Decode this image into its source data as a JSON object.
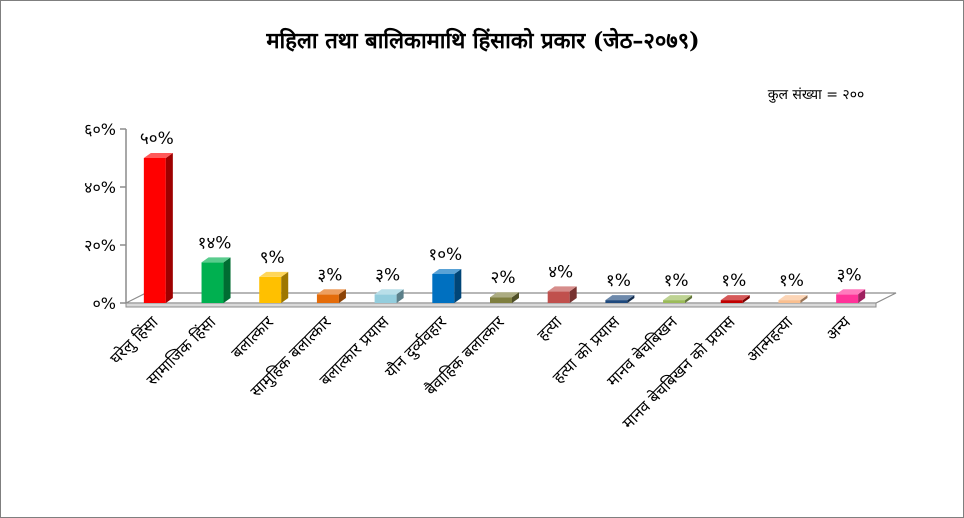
{
  "chart_data": {
    "type": "bar",
    "title": "महिला तथा बालिकामाथि हिंसाको प्रकार (जेठ–२०७९)",
    "annotation": "कुल संख्या = २००",
    "categories": [
      "घरेलु हिंसा",
      "सामाजिक हिंसा",
      "बलात्कार",
      "सामुहिक बलात्कार",
      "बलात्कार प्रयास",
      "यौन दुर्व्यवहार",
      "बैवाहिक बलात्कार",
      "हत्या",
      "हत्या को प्रयास",
      "मानव बेचबिखन",
      "मानव बेचबिखन को प्रयास",
      "आत्महत्या",
      "अन्य"
    ],
    "values": [
      50,
      14,
      9,
      3,
      3,
      10,
      2,
      4,
      1,
      1,
      1,
      1,
      3
    ],
    "data_labels": [
      "५०%",
      "१४%",
      "९%",
      "३%",
      "३%",
      "१०%",
      "२%",
      "४%",
      "१%",
      "१%",
      "१%",
      "१%",
      "३%"
    ],
    "y_ticks": [
      0,
      20,
      40,
      60
    ],
    "y_tick_labels": [
      "०%",
      "२०%",
      "४०%",
      "६०%"
    ],
    "ylim": [
      0,
      60
    ],
    "colors": [
      "#ff0000",
      "#00b050",
      "#ffc000",
      "#e46c0a",
      "#93cddd",
      "#0070c0",
      "#7f7f3f",
      "#c0504d",
      "#1f497d",
      "#9bbb59",
      "#c00000",
      "#fabf8f",
      "#ff3399"
    ],
    "grid": false,
    "legend": "none",
    "xlabel": "",
    "ylabel": ""
  }
}
